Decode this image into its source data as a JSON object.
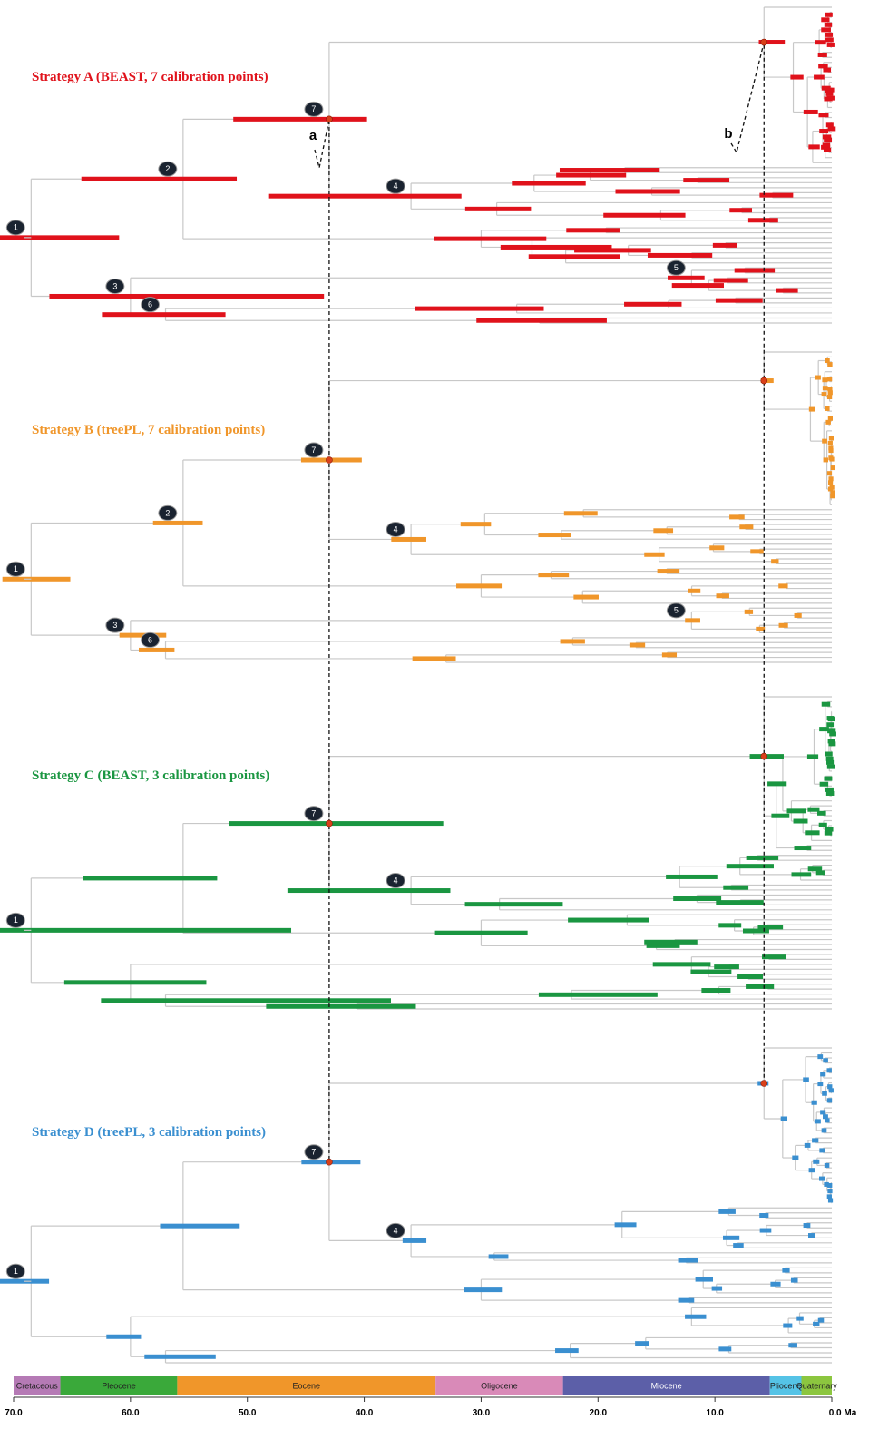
{
  "chart_data": {
    "type": "chronogram",
    "panels": [
      {
        "title": "Strategy A (BEAST, 7 calibration points)",
        "color": "#e0121b",
        "calibrations": [
          "1",
          "2",
          "3",
          "4",
          "5",
          "6",
          "7"
        ]
      },
      {
        "title": "Strategy B (treePL, 7 calibration points)",
        "color": "#f0962a",
        "calibrations": [
          "1",
          "2",
          "3",
          "4",
          "5",
          "6",
          "7"
        ]
      },
      {
        "title": "Strategy C (BEAST, 3 calibration points)",
        "color": "#1a9641",
        "calibrations": [
          "1",
          "4",
          "7"
        ]
      },
      {
        "title": "Strategy D (treePL, 3 calibration points)",
        "color": "#3a8fd0",
        "calibrations": [
          "1",
          "4",
          "7"
        ]
      }
    ],
    "annotations": [
      "a",
      "b"
    ],
    "xlim": [
      70,
      0
    ],
    "xticks": [
      {
        "value": 70,
        "label": "70.0"
      },
      {
        "value": 60,
        "label": "60.0"
      },
      {
        "value": 50,
        "label": "50.0"
      },
      {
        "value": 40,
        "label": "40.0"
      },
      {
        "value": 30,
        "label": "30.0"
      },
      {
        "value": 20,
        "label": "20.0"
      },
      {
        "value": 10,
        "label": "10.0"
      },
      {
        "value": 0,
        "label": "0.0 Ma"
      }
    ],
    "epochs": [
      {
        "name": "Cretaceous",
        "start": 70,
        "end": 66,
        "color": "#b57ab5"
      },
      {
        "name": "Pleocene",
        "start": 66,
        "end": 56,
        "color": "#3aa93a"
      },
      {
        "name": "Eocene",
        "start": 56,
        "end": 33.9,
        "color": "#f0962a"
      },
      {
        "name": "Oligocene",
        "start": 33.9,
        "end": 23,
        "color": "#d98ab8"
      },
      {
        "name": "Miocene",
        "start": 23,
        "end": 5.3,
        "color": "#5c5fa8"
      },
      {
        "name": "Pliocene",
        "start": 5.3,
        "end": 2.6,
        "color": "#55c3e6"
      },
      {
        "name": "Quaternary",
        "start": 2.6,
        "end": 0,
        "color": "#8cc63f"
      }
    ]
  }
}
